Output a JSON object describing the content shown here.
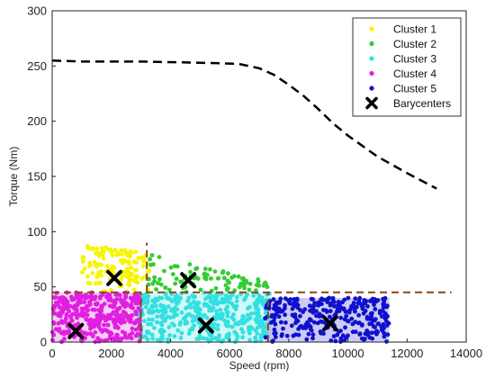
{
  "chart_data": {
    "type": "scatter",
    "title": "",
    "xlabel": "Speed (rpm)",
    "ylabel": "Torque (Nm)",
    "xlim": [
      0,
      14000
    ],
    "ylim": [
      0,
      300
    ],
    "x_ticks": [
      0,
      2000,
      4000,
      6000,
      8000,
      10000,
      12000,
      14000
    ],
    "y_ticks": [
      0,
      50,
      100,
      150,
      200,
      250,
      300
    ],
    "grid": false,
    "legend_position": "top-right",
    "series": [
      {
        "name": "Cluster 1",
        "color": "#f5f500",
        "region": {
          "x": [
            1000,
            3300
          ],
          "y": [
            45,
            90
          ]
        },
        "point_count": 130
      },
      {
        "name": "Cluster 2",
        "color": "#33cc33",
        "region": {
          "x": [
            3200,
            7300
          ],
          "y": [
            45,
            80
          ]
        },
        "point_count": 90
      },
      {
        "name": "Cluster 3",
        "color": "#33e0e0",
        "region": {
          "x": [
            2900,
            7400
          ],
          "y": [
            0,
            45
          ]
        },
        "point_count": 420
      },
      {
        "name": "Cluster 4",
        "color": "#e020e0",
        "region": {
          "x": [
            0,
            3000
          ],
          "y": [
            0,
            45
          ]
        },
        "point_count": 380
      },
      {
        "name": "Cluster 5",
        "color": "#1010cc",
        "region": {
          "x": [
            7200,
            11400
          ],
          "y": [
            0,
            40
          ]
        },
        "point_count": 300
      }
    ],
    "barycenters": {
      "name": "Barycenters",
      "points": [
        [
          2100,
          58
        ],
        [
          4600,
          56
        ],
        [
          800,
          10
        ],
        [
          5200,
          15
        ],
        [
          9400,
          17
        ]
      ]
    },
    "torque_envelope": {
      "color": "#000000",
      "points": [
        [
          0,
          255
        ],
        [
          1000,
          254
        ],
        [
          3000,
          254
        ],
        [
          5000,
          253
        ],
        [
          6300,
          252
        ],
        [
          7000,
          248
        ],
        [
          7500,
          242
        ],
        [
          8000,
          233
        ],
        [
          8500,
          223
        ],
        [
          9000,
          211
        ],
        [
          9500,
          198
        ],
        [
          10000,
          187
        ],
        [
          11000,
          168
        ],
        [
          12000,
          153
        ],
        [
          13000,
          139
        ]
      ]
    },
    "cluster_bounds": {
      "color": "#8b4513",
      "lines": [
        [
          [
            0,
            45
          ],
          [
            13500,
            45
          ]
        ],
        [
          [
            3000,
            0
          ],
          [
            3000,
            45
          ]
        ],
        [
          [
            3200,
            45
          ],
          [
            3200,
            90
          ]
        ],
        [
          [
            7300,
            0
          ],
          [
            7300,
            45
          ]
        ]
      ]
    }
  }
}
